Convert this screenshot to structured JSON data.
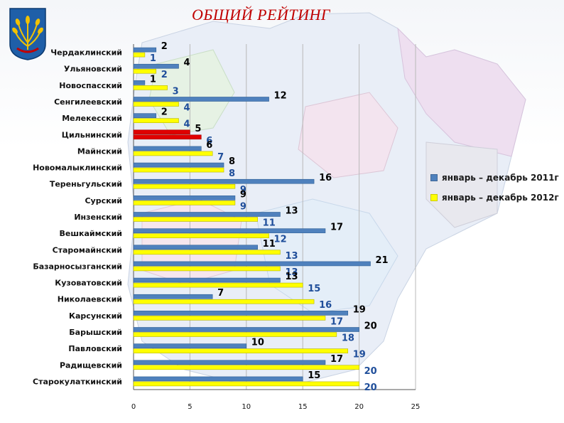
{
  "title": "ОБЩИЙ РЕЙТИНГ",
  "colors": {
    "series1": "#4f81bd",
    "series2": "#ffff00",
    "highlight": "#e00000",
    "title": "#c00000",
    "label1": "#000000",
    "label2": "#1f4e9a"
  },
  "emblem": {
    "icon": "wheat-sheaf-emblem-icon"
  },
  "legend": {
    "items": [
      {
        "label": "январь – декабрь 2011г",
        "color": "#4f81bd"
      },
      {
        "label": "январь – декабрь 2012г",
        "color": "#ffff00"
      }
    ]
  },
  "chart_data": {
    "type": "bar",
    "orientation": "horizontal",
    "title": "ОБЩИЙ РЕЙТИНГ",
    "xlabel": "",
    "ylabel": "",
    "xlim": [
      0,
      25
    ],
    "xticks": [
      0,
      5,
      10,
      15,
      20,
      25
    ],
    "grid": true,
    "legend_position": "right",
    "highlighted_category": "Цильнинский",
    "categories": [
      "Чердаклинский",
      "Ульяновский",
      "Новоспасский",
      "Сенгилеевский",
      "Мелекесский",
      "Цильнинский",
      "Майнский",
      "Новомалыклинский",
      "Тереньгульский",
      "Сурский",
      "Инзенский",
      "Вешкаймский",
      "Старомайнский",
      "Базарносызганский",
      "Кузоватовский",
      "Николаевский",
      "Карсунский",
      "Барышский",
      "Павловский",
      "Радищевский",
      "Старокулаткинский"
    ],
    "series": [
      {
        "name": "январь – декабрь 2011г",
        "values": [
          2,
          4,
          1,
          12,
          2,
          5,
          6,
          8,
          16,
          9,
          13,
          17,
          11,
          21,
          13,
          7,
          19,
          20,
          10,
          17,
          15
        ]
      },
      {
        "name": "январь – декабрь 2012г",
        "values": [
          1,
          2,
          3,
          4,
          4,
          6,
          7,
          8,
          9,
          9,
          11,
          12,
          13,
          13,
          15,
          16,
          17,
          18,
          19,
          20,
          20
        ]
      }
    ]
  }
}
